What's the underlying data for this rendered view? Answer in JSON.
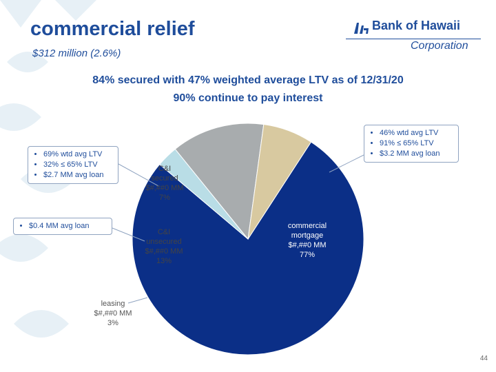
{
  "slide": {
    "title": "commercial relief",
    "subtitle": "$312 million (2.6%)",
    "headline_1": "84% secured with 47% weighted average LTV as of 12/31/20",
    "headline_2": "90% continue to pay interest",
    "page_number": "44"
  },
  "logo": {
    "brand": "Bank of Hawaii",
    "corporation": "Corporation"
  },
  "callouts": {
    "commercial_mortgage": [
      "46% wtd avg LTV",
      "91% ≤ 65% LTV",
      "$3.2 MM avg loan"
    ],
    "ci_secured": [
      "69% wtd avg LTV",
      "32% ≤ 65% LTV",
      "$2.7 MM avg loan"
    ],
    "ci_unsecured": [
      "$0.4 MM avg loan"
    ]
  },
  "colors": {
    "accent": "#1f4d9b",
    "commercial_mortgage": "#0b2f87",
    "leasing": "#b9dde6",
    "ci_unsecured": "#a8acae",
    "ci_secured": "#d8c9a0"
  },
  "chart_data": {
    "type": "pie",
    "title": "",
    "slices": [
      {
        "name": "commercial mortgage",
        "label_lines": [
          "commercial",
          "mortgage",
          "$#,##0 MM",
          "77%"
        ],
        "value": 77,
        "color": "#0b2f87",
        "label_color": "#ffffff"
      },
      {
        "name": "leasing",
        "label_lines": [
          "leasing",
          "$#,##0 MM",
          "3%"
        ],
        "value": 3,
        "color": "#b9dde6",
        "label_color": "#555555"
      },
      {
        "name": "C&I unsecured",
        "label_lines": [
          "C&I",
          "unsecured",
          "$#,##0 MM",
          "13%"
        ],
        "value": 13,
        "color": "#a8acae",
        "label_color": "#444444"
      },
      {
        "name": "C&I secured",
        "label_lines": [
          "C&I",
          "secured",
          "$#,##0 MM",
          "7%"
        ],
        "value": 7,
        "color": "#d8c9a0",
        "label_color": "#444444"
      }
    ]
  }
}
